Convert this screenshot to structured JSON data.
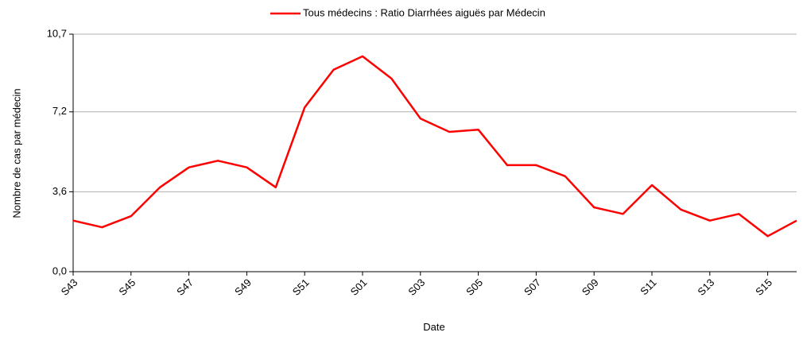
{
  "chart_data": {
    "type": "line",
    "x_label": "Date",
    "y_label": "Nombre de cas par médecin",
    "categories": [
      "S43",
      null,
      "S45",
      null,
      "S47",
      null,
      "S49",
      null,
      "S51",
      null,
      "S01",
      null,
      "S03",
      null,
      "S05",
      null,
      "S07",
      null,
      "S09",
      null,
      "S11",
      null,
      "S13",
      null,
      "S15",
      null
    ],
    "series": [
      {
        "name": "Tous médecins : Ratio Diarrhées aiguës par Médecin",
        "color": "#ff0000",
        "values": [
          2.3,
          2.0,
          2.5,
          3.8,
          4.7,
          5.0,
          4.7,
          3.8,
          7.4,
          9.1,
          9.7,
          8.7,
          6.9,
          6.3,
          6.4,
          4.8,
          4.8,
          4.3,
          2.9,
          2.6,
          3.9,
          2.8,
          2.3,
          2.6,
          1.6,
          2.3
        ]
      }
    ],
    "ylim": [
      0,
      10.7
    ],
    "yticks": [
      {
        "value": 0,
        "label": "0,0"
      },
      {
        "value": 3.6,
        "label": "3,6"
      },
      {
        "value": 7.2,
        "label": "7,2"
      },
      {
        "value": 10.7,
        "label": "10,7"
      }
    ],
    "grid": true,
    "legend": "top"
  }
}
